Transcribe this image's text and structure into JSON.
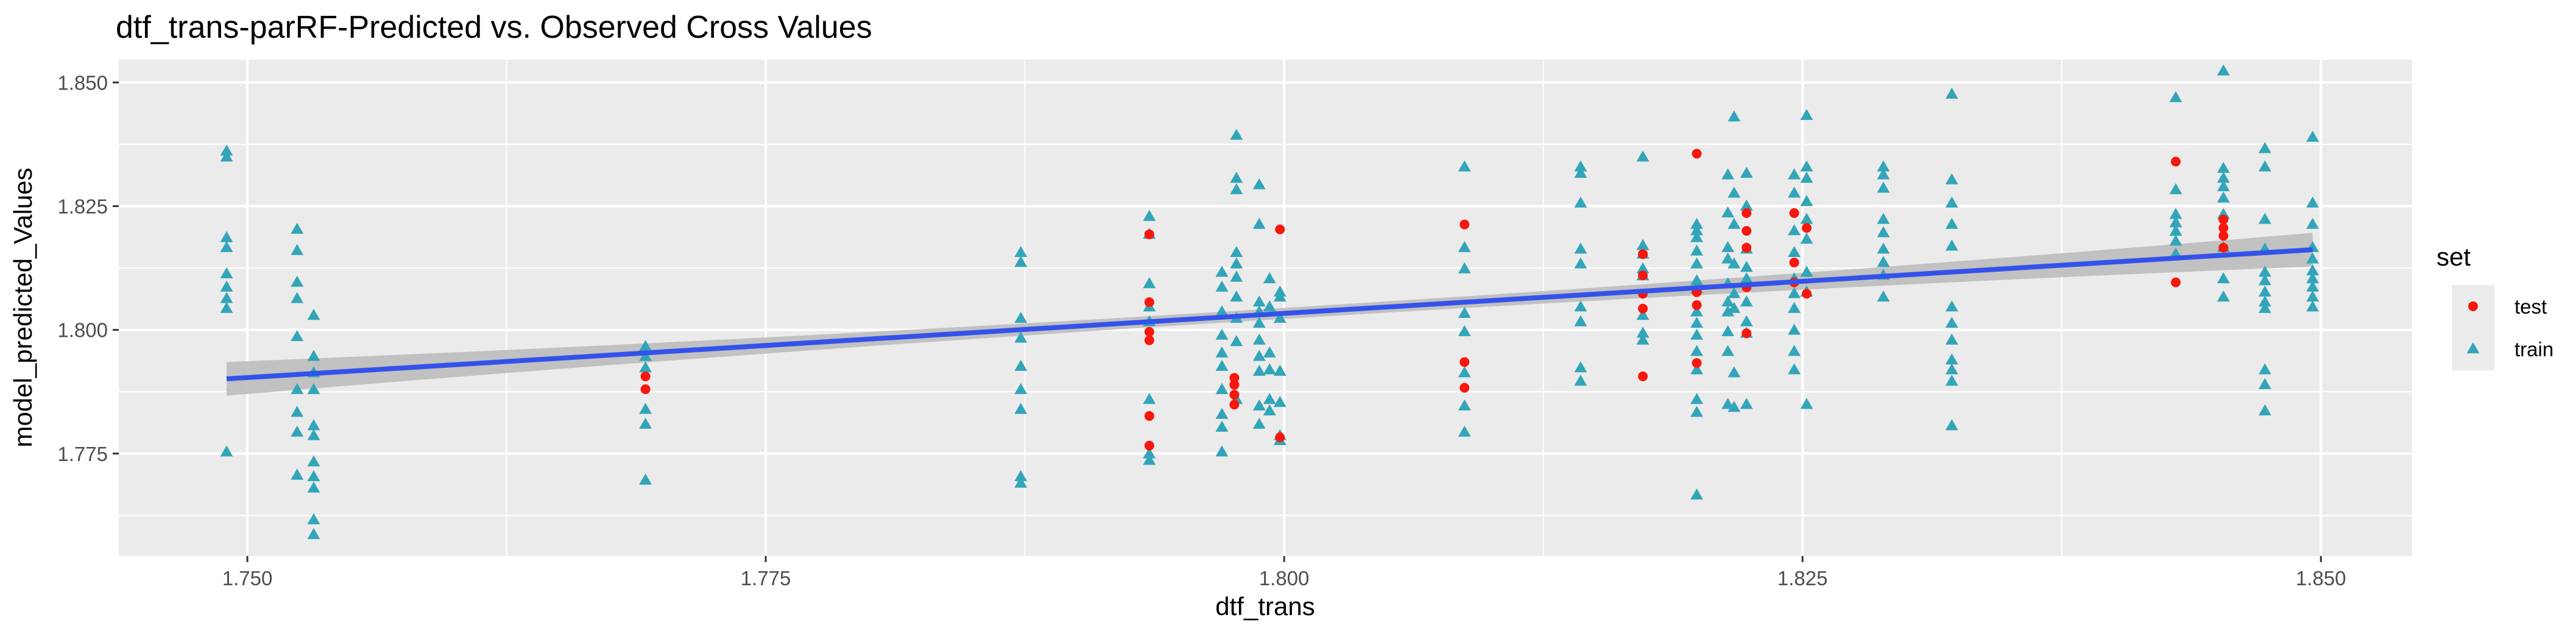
{
  "chart_data": {
    "type": "scatter",
    "title": "dtf_trans-parRF-Predicted vs. Observed Cross Values",
    "xlabel": "dtf_trans",
    "ylabel": "model_predicted_Values",
    "xlim": [
      1.7438,
      1.8544
    ],
    "ylim": [
      1.7543,
      1.8546
    ],
    "x_ticks": [
      1.75,
      1.775,
      1.8,
      1.825,
      1.85
    ],
    "x_tick_labels": [
      "1.750",
      "1.775",
      "1.800",
      "1.825",
      "1.850"
    ],
    "y_ticks": [
      1.775,
      1.8,
      1.825,
      1.85
    ],
    "y_tick_labels": [
      "1.775",
      "1.800",
      "1.825",
      "1.850"
    ],
    "grid": true,
    "legend": {
      "title": "set",
      "position": "right"
    },
    "colors": {
      "panel": "#ebebeb",
      "grid": "#ffffff",
      "test": "#f8170d",
      "train": "#33a5b9",
      "trend": "#3352ea",
      "band": "#bdbdbd"
    },
    "trend_line": {
      "x": [
        1.749,
        1.8496
      ],
      "y": [
        1.7901,
        1.8162
      ],
      "se_halfwidth_ends": 0.0034,
      "se_halfwidth_mid": 0.0011
    },
    "series": [
      {
        "name": "test",
        "marker": "circle",
        "points": [
          [
            1.7692,
            1.7906
          ],
          [
            1.7692,
            1.788
          ],
          [
            1.7935,
            1.8193
          ],
          [
            1.7935,
            1.8056
          ],
          [
            1.7935,
            1.7996
          ],
          [
            1.7935,
            1.7979
          ],
          [
            1.7935,
            1.7826
          ],
          [
            1.7935,
            1.7766
          ],
          [
            1.7976,
            1.7903
          ],
          [
            1.7976,
            1.7889
          ],
          [
            1.7976,
            1.7869
          ],
          [
            1.7976,
            1.7849
          ],
          [
            1.7998,
            1.8203
          ],
          [
            1.7998,
            1.7783
          ],
          [
            1.8087,
            1.8213
          ],
          [
            1.8087,
            1.7935
          ],
          [
            1.8087,
            1.7883
          ],
          [
            1.8173,
            1.8153
          ],
          [
            1.8173,
            1.811
          ],
          [
            1.8173,
            1.8073
          ],
          [
            1.8173,
            1.8043
          ],
          [
            1.8173,
            1.7906
          ],
          [
            1.8199,
            1.8356
          ],
          [
            1.8199,
            1.8076
          ],
          [
            1.8199,
            1.805
          ],
          [
            1.8199,
            1.7933
          ],
          [
            1.8223,
            1.8236
          ],
          [
            1.8223,
            1.82
          ],
          [
            1.8223,
            1.8166
          ],
          [
            1.8223,
            1.8086
          ],
          [
            1.8223,
            1.7993
          ],
          [
            1.8246,
            1.8236
          ],
          [
            1.8246,
            1.8136
          ],
          [
            1.8246,
            1.8096
          ],
          [
            1.8252,
            1.8206
          ],
          [
            1.8252,
            1.8073
          ],
          [
            1.843,
            1.834
          ],
          [
            1.843,
            1.8096
          ],
          [
            1.8453,
            1.8223
          ],
          [
            1.8453,
            1.8206
          ],
          [
            1.8453,
            1.819
          ],
          [
            1.8453,
            1.8166
          ]
        ]
      },
      {
        "name": "train",
        "marker": "triangle",
        "points": [
          [
            1.749,
            1.8361
          ],
          [
            1.749,
            1.8349
          ],
          [
            1.749,
            1.8186
          ],
          [
            1.749,
            1.8166
          ],
          [
            1.749,
            1.8113
          ],
          [
            1.749,
            1.8086
          ],
          [
            1.749,
            1.8063
          ],
          [
            1.749,
            1.8043
          ],
          [
            1.749,
            1.7753
          ],
          [
            1.7524,
            1.8203
          ],
          [
            1.7524,
            1.816
          ],
          [
            1.7524,
            1.8096
          ],
          [
            1.7524,
            1.8063
          ],
          [
            1.7524,
            1.7986
          ],
          [
            1.7524,
            1.7879
          ],
          [
            1.7524,
            1.7833
          ],
          [
            1.7524,
            1.7793
          ],
          [
            1.7524,
            1.7706
          ],
          [
            1.7532,
            1.8029
          ],
          [
            1.7532,
            1.7946
          ],
          [
            1.7532,
            1.7913
          ],
          [
            1.7532,
            1.7879
          ],
          [
            1.7532,
            1.7806
          ],
          [
            1.7532,
            1.7786
          ],
          [
            1.7532,
            1.7733
          ],
          [
            1.7532,
            1.7703
          ],
          [
            1.7532,
            1.768
          ],
          [
            1.7532,
            1.7616
          ],
          [
            1.7532,
            1.7586
          ],
          [
            1.7692,
            1.7966
          ],
          [
            1.7692,
            1.7946
          ],
          [
            1.7692,
            1.7923
          ],
          [
            1.7692,
            1.7839
          ],
          [
            1.7692,
            1.7809
          ],
          [
            1.7692,
            1.7696
          ],
          [
            1.7873,
            1.8156
          ],
          [
            1.7873,
            1.8136
          ],
          [
            1.7873,
            1.8023
          ],
          [
            1.7873,
            1.7983
          ],
          [
            1.7873,
            1.7926
          ],
          [
            1.7873,
            1.7879
          ],
          [
            1.7873,
            1.7839
          ],
          [
            1.7873,
            1.7703
          ],
          [
            1.7873,
            1.769
          ],
          [
            1.7935,
            1.8229
          ],
          [
            1.7935,
            1.8193
          ],
          [
            1.7935,
            1.8093
          ],
          [
            1.7935,
            1.8046
          ],
          [
            1.7935,
            1.8016
          ],
          [
            1.7935,
            1.7859
          ],
          [
            1.7935,
            1.7749
          ],
          [
            1.7935,
            1.7736
          ],
          [
            1.797,
            1.8116
          ],
          [
            1.797,
            1.8086
          ],
          [
            1.797,
            1.8036
          ],
          [
            1.797,
            1.7989
          ],
          [
            1.797,
            1.7953
          ],
          [
            1.797,
            1.7926
          ],
          [
            1.797,
            1.7879
          ],
          [
            1.797,
            1.7829
          ],
          [
            1.797,
            1.7803
          ],
          [
            1.797,
            1.7753
          ],
          [
            1.7977,
            1.8393
          ],
          [
            1.7977,
            1.8306
          ],
          [
            1.7977,
            1.8283
          ],
          [
            1.7977,
            1.8156
          ],
          [
            1.7977,
            1.8133
          ],
          [
            1.7977,
            1.8106
          ],
          [
            1.7977,
            1.8066
          ],
          [
            1.7977,
            1.8023
          ],
          [
            1.7977,
            1.7976
          ],
          [
            1.7977,
            1.7859
          ],
          [
            1.7988,
            1.8293
          ],
          [
            1.7988,
            1.8213
          ],
          [
            1.7988,
            1.8056
          ],
          [
            1.7988,
            1.8036
          ],
          [
            1.7988,
            1.8013
          ],
          [
            1.7988,
            1.7979
          ],
          [
            1.7988,
            1.7946
          ],
          [
            1.7988,
            1.7916
          ],
          [
            1.7988,
            1.7846
          ],
          [
            1.7988,
            1.7809
          ],
          [
            1.7993,
            1.8103
          ],
          [
            1.7993,
            1.8046
          ],
          [
            1.7993,
            1.7953
          ],
          [
            1.7993,
            1.7919
          ],
          [
            1.7993,
            1.7859
          ],
          [
            1.7993,
            1.7836
          ],
          [
            1.7998,
            1.8076
          ],
          [
            1.7998,
            1.8066
          ],
          [
            1.7998,
            1.8023
          ],
          [
            1.7998,
            1.7916
          ],
          [
            1.7998,
            1.7853
          ],
          [
            1.7998,
            1.7786
          ],
          [
            1.7998,
            1.7776
          ],
          [
            1.8087,
            1.8329
          ],
          [
            1.8087,
            1.8166
          ],
          [
            1.8087,
            1.8123
          ],
          [
            1.8087,
            1.8033
          ],
          [
            1.8087,
            1.7996
          ],
          [
            1.8087,
            1.7913
          ],
          [
            1.8087,
            1.7846
          ],
          [
            1.8087,
            1.7793
          ],
          [
            1.8143,
            1.8329
          ],
          [
            1.8143,
            1.8316
          ],
          [
            1.8143,
            1.8256
          ],
          [
            1.8143,
            1.8163
          ],
          [
            1.8143,
            1.8133
          ],
          [
            1.8143,
            1.8046
          ],
          [
            1.8143,
            1.8016
          ],
          [
            1.8143,
            1.7923
          ],
          [
            1.8143,
            1.7896
          ],
          [
            1.8173,
            1.8349
          ],
          [
            1.8173,
            1.817
          ],
          [
            1.8173,
            1.8153
          ],
          [
            1.8173,
            1.8123
          ],
          [
            1.8173,
            1.8109
          ],
          [
            1.8173,
            1.8029
          ],
          [
            1.8173,
            1.7993
          ],
          [
            1.8173,
            1.7979
          ],
          [
            1.8199,
            1.8213
          ],
          [
            1.8199,
            1.82
          ],
          [
            1.8199,
            1.8186
          ],
          [
            1.8199,
            1.8159
          ],
          [
            1.8199,
            1.8133
          ],
          [
            1.8199,
            1.8099
          ],
          [
            1.8199,
            1.8083
          ],
          [
            1.8199,
            1.8036
          ],
          [
            1.8199,
            1.8013
          ],
          [
            1.8199,
            1.7989
          ],
          [
            1.8199,
            1.7956
          ],
          [
            1.8199,
            1.7919
          ],
          [
            1.8199,
            1.7859
          ],
          [
            1.8199,
            1.7833
          ],
          [
            1.8199,
            1.7666
          ],
          [
            1.8214,
            1.8313
          ],
          [
            1.8214,
            1.8236
          ],
          [
            1.8214,
            1.8166
          ],
          [
            1.8214,
            1.8143
          ],
          [
            1.8214,
            1.8093
          ],
          [
            1.8214,
            1.8056
          ],
          [
            1.8214,
            1.8036
          ],
          [
            1.8214,
            1.7996
          ],
          [
            1.8214,
            1.7956
          ],
          [
            1.8214,
            1.7849
          ],
          [
            1.8217,
            1.843
          ],
          [
            1.8217,
            1.8276
          ],
          [
            1.8217,
            1.8213
          ],
          [
            1.8217,
            1.8133
          ],
          [
            1.8217,
            1.8073
          ],
          [
            1.8217,
            1.8043
          ],
          [
            1.8217,
            1.7913
          ],
          [
            1.8217,
            1.7843
          ],
          [
            1.8223,
            1.8316
          ],
          [
            1.8223,
            1.825
          ],
          [
            1.8223,
            1.8163
          ],
          [
            1.8223,
            1.8126
          ],
          [
            1.8223,
            1.8103
          ],
          [
            1.8223,
            1.8056
          ],
          [
            1.8223,
            1.8016
          ],
          [
            1.8223,
            1.7993
          ],
          [
            1.8223,
            1.7849
          ],
          [
            1.8246,
            1.8313
          ],
          [
            1.8246,
            1.8276
          ],
          [
            1.8246,
            1.82
          ],
          [
            1.8246,
            1.8156
          ],
          [
            1.8246,
            1.8103
          ],
          [
            1.8246,
            1.8073
          ],
          [
            1.8246,
            1.8043
          ],
          [
            1.8246,
            1.7999
          ],
          [
            1.8246,
            1.7956
          ],
          [
            1.8246,
            1.7919
          ],
          [
            1.8252,
            1.8433
          ],
          [
            1.8252,
            1.8329
          ],
          [
            1.8252,
            1.8306
          ],
          [
            1.8252,
            1.8259
          ],
          [
            1.8252,
            1.8223
          ],
          [
            1.8252,
            1.8183
          ],
          [
            1.8252,
            1.8116
          ],
          [
            1.8252,
            1.8076
          ],
          [
            1.8252,
            1.7849
          ],
          [
            1.8289,
            1.8329
          ],
          [
            1.8289,
            1.8313
          ],
          [
            1.8289,
            1.8286
          ],
          [
            1.8289,
            1.8223
          ],
          [
            1.8289,
            1.8196
          ],
          [
            1.8289,
            1.8163
          ],
          [
            1.8289,
            1.8136
          ],
          [
            1.8289,
            1.811
          ],
          [
            1.8289,
            1.8066
          ],
          [
            1.8322,
            1.8476
          ],
          [
            1.8322,
            1.8303
          ],
          [
            1.8322,
            1.8256
          ],
          [
            1.8322,
            1.8213
          ],
          [
            1.8322,
            1.8169
          ],
          [
            1.8322,
            1.8046
          ],
          [
            1.8322,
            1.8013
          ],
          [
            1.8322,
            1.7979
          ],
          [
            1.8322,
            1.7939
          ],
          [
            1.8322,
            1.7919
          ],
          [
            1.8322,
            1.7896
          ],
          [
            1.8322,
            1.7806
          ],
          [
            1.843,
            1.8469
          ],
          [
            1.843,
            1.8283
          ],
          [
            1.843,
            1.8233
          ],
          [
            1.843,
            1.8216
          ],
          [
            1.843,
            1.8199
          ],
          [
            1.843,
            1.8179
          ],
          [
            1.843,
            1.8153
          ],
          [
            1.8453,
            1.8523
          ],
          [
            1.8453,
            1.8326
          ],
          [
            1.8453,
            1.8306
          ],
          [
            1.8453,
            1.8289
          ],
          [
            1.8453,
            1.8266
          ],
          [
            1.8453,
            1.8233
          ],
          [
            1.8453,
            1.8166
          ],
          [
            1.8453,
            1.8103
          ],
          [
            1.8453,
            1.8066
          ],
          [
            1.8473,
            1.8366
          ],
          [
            1.8473,
            1.8329
          ],
          [
            1.8473,
            1.8223
          ],
          [
            1.8473,
            1.8163
          ],
          [
            1.8473,
            1.8116
          ],
          [
            1.8473,
            1.8099
          ],
          [
            1.8473,
            1.8076
          ],
          [
            1.8473,
            1.8056
          ],
          [
            1.8473,
            1.8043
          ],
          [
            1.8473,
            1.7919
          ],
          [
            1.8473,
            1.7889
          ],
          [
            1.8473,
            1.7836
          ],
          [
            1.8496,
            1.8389
          ],
          [
            1.8496,
            1.8256
          ],
          [
            1.8496,
            1.8213
          ],
          [
            1.8496,
            1.8166
          ],
          [
            1.8496,
            1.8143
          ],
          [
            1.8496,
            1.8119
          ],
          [
            1.8496,
            1.8103
          ],
          [
            1.8496,
            1.8086
          ],
          [
            1.8496,
            1.8066
          ],
          [
            1.8496,
            1.8046
          ]
        ]
      }
    ]
  }
}
